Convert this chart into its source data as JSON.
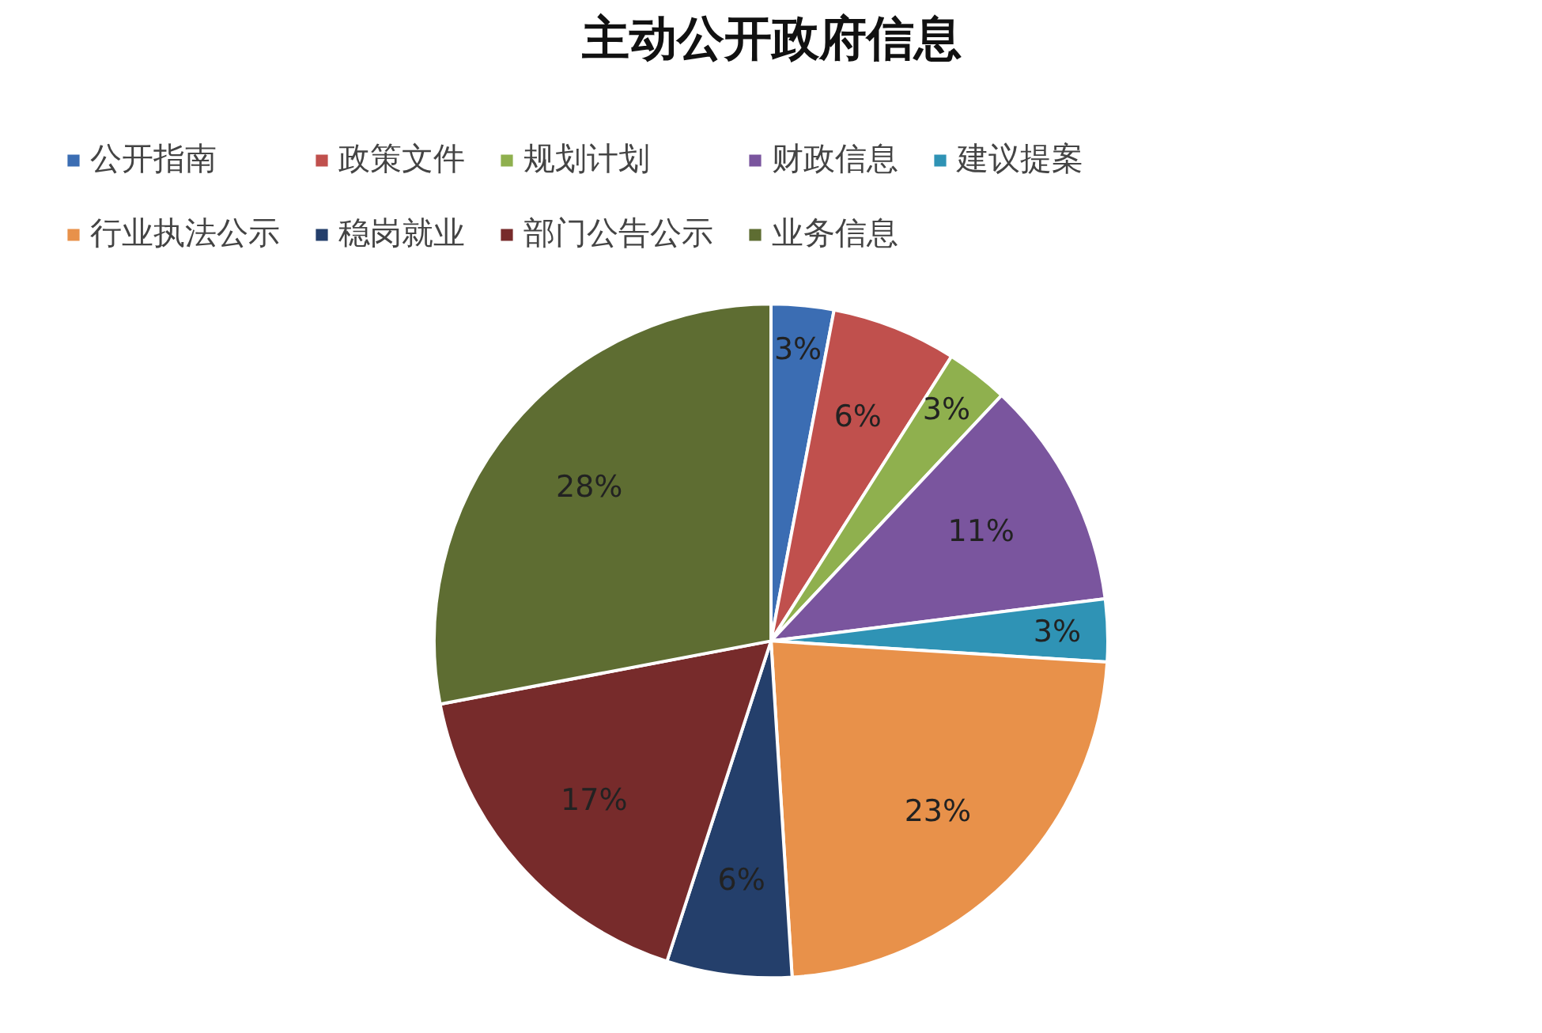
{
  "chart_data": {
    "type": "pie",
    "title": "主动公开政府信息",
    "categories": [
      "公开指南",
      "政策文件",
      "规划计划",
      "财政信息",
      "建议提案",
      "行业执法公示",
      "稳岗就业",
      "部门公告公示",
      "业务信息"
    ],
    "values": [
      3,
      6,
      3,
      11,
      3,
      23,
      6,
      17,
      28
    ],
    "colors": [
      "#3b6db3",
      "#c0504d",
      "#8fb04e",
      "#7a559e",
      "#2f93b5",
      "#e8914a",
      "#243f6b",
      "#772b2b",
      "#5e6d32"
    ],
    "value_labels": [
      "3%",
      "6%",
      "3%",
      "11%",
      "3%",
      "23%",
      "6%",
      "17%",
      "28%"
    ],
    "legend": "top"
  }
}
